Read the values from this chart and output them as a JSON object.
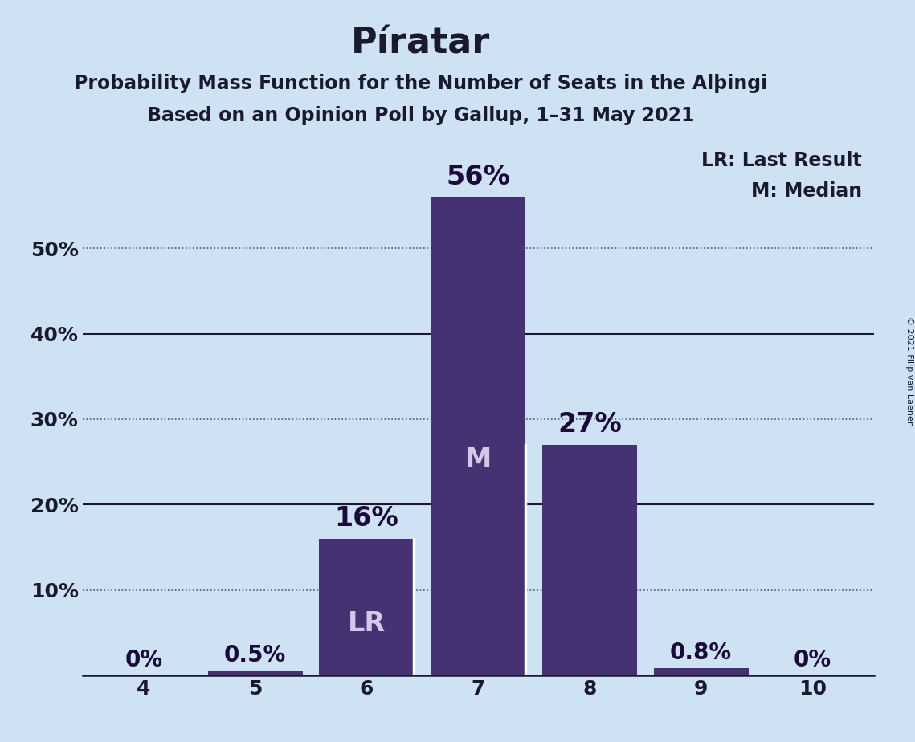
{
  "title": "Píratar",
  "subtitle1": "Probability Mass Function for the Number of Seats in the Alþingi",
  "subtitle2": "Based on an Opinion Poll by Gallup, 1–31 May 2021",
  "copyright": "© 2021 Filip van Laenen",
  "legend_lr": "LR: Last Result",
  "legend_m": "M: Median",
  "categories": [
    4,
    5,
    6,
    7,
    8,
    9,
    10
  ],
  "values": [
    0.0,
    0.5,
    16.0,
    56.0,
    27.0,
    0.8,
    0.0
  ],
  "labels": [
    "0%",
    "0.5%",
    "16%",
    "56%",
    "27%",
    "0.8%",
    "0%"
  ],
  "bar_color": "#463272",
  "background_color": "#cfe2f3",
  "ylim": [
    0,
    63
  ],
  "ytick_positions": [
    10,
    20,
    30,
    40,
    50
  ],
  "ytick_labels": [
    "10%",
    "20%",
    "30%",
    "40%",
    "50%"
  ],
  "solid_gridlines": [
    20,
    40
  ],
  "dotted_gridlines": [
    10,
    30,
    50
  ],
  "title_fontsize": 32,
  "subtitle_fontsize": 17,
  "label_fontsize": 17,
  "tick_fontsize": 18,
  "annotation_fontsize_large": 24,
  "annotation_fontsize_small": 20,
  "inside_label_color": "#d4c8e8",
  "outside_label_color": "#1a0a3a",
  "lr_bar_index": 2,
  "median_bar_index": 3,
  "white_sep_after": [
    2,
    3
  ],
  "bar_width": 0.85
}
